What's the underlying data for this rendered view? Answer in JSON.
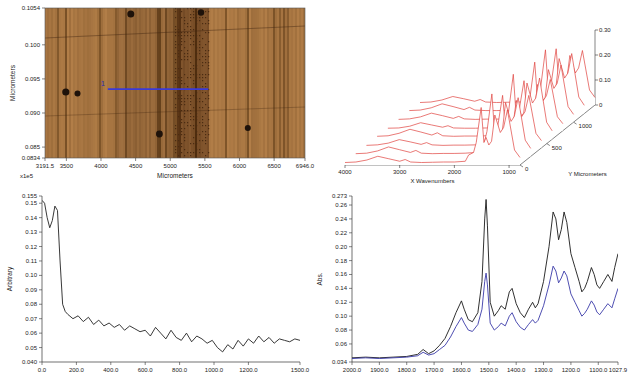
{
  "chart_data": [
    {
      "type": "image",
      "xlabel": "Micrometers",
      "ylabel": "Micrometers",
      "xlim": [
        3191.5,
        6946
      ],
      "ylim": [
        0.0834,
        0.1054
      ],
      "xticks": [
        3191.5,
        3500,
        4000,
        4500,
        5000,
        5500,
        6000,
        6500,
        {
          "value": 6946,
          "label": "6946.0"
        }
      ],
      "yticks": [
        0.0834,
        0.085,
        {
          "value": 0.09,
          "label": "0.090"
        },
        0.095,
        {
          "value": 0.1,
          "label": "0.100"
        },
        0.1054
      ],
      "series": [
        {
          "color": "#3a3ad8",
          "x": [
            4100,
            5550
          ],
          "values": [
            0.0935,
            0.0935
          ]
        }
      ],
      "annotations": [
        "1",
        "x1e5"
      ]
    },
    {
      "type": "waterfall",
      "xlabel": "X Wavenumbers",
      "ylabel": "Y Micrometers",
      "xlim": [
        4000,
        800
      ],
      "xticks": [
        4000,
        3000,
        2000,
        1000
      ],
      "ylim": [
        0,
        1400
      ],
      "yticks": [
        0,
        500,
        1000
      ],
      "zlim": [
        0,
        0.3
      ],
      "zticks": [
        0,
        {
          "value": 0.1,
          "label": "0.10"
        },
        {
          "value": 0.2,
          "label": "0.20"
        },
        {
          "value": 0.3,
          "label": "0.30"
        }
      ],
      "color": "#e0403c",
      "x": [
        4000,
        3800,
        3600,
        3400,
        3200,
        3000,
        2900,
        2800,
        2600,
        2400,
        2200,
        2000,
        1800,
        1740,
        1650,
        1600,
        1510,
        1460,
        1420,
        1370,
        1320,
        1260,
        1160,
        1100,
        1030,
        900,
        800
      ],
      "series": [
        {
          "position": 0,
          "values": [
            0.01,
            0.012,
            0.02,
            0.035,
            0.025,
            0.015,
            0.022,
            0.012,
            0.01,
            0.011,
            0.012,
            0.012,
            0.015,
            0.04,
            0.05,
            0.09,
            0.23,
            0.09,
            0.11,
            0.08,
            0.095,
            0.2,
            0.13,
            0.15,
            0.22,
            0.06,
            0.03
          ]
        },
        {
          "position": 200,
          "values": [
            0.011,
            0.013,
            0.022,
            0.038,
            0.027,
            0.016,
            0.024,
            0.013,
            0.011,
            0.012,
            0.012,
            0.013,
            0.016,
            0.045,
            0.055,
            0.1,
            0.25,
            0.095,
            0.12,
            0.085,
            0.1,
            0.215,
            0.14,
            0.16,
            0.235,
            0.065,
            0.032
          ]
        },
        {
          "position": 400,
          "values": [
            0.01,
            0.012,
            0.019,
            0.033,
            0.024,
            0.014,
            0.021,
            0.012,
            0.01,
            0.011,
            0.011,
            0.012,
            0.014,
            0.038,
            0.048,
            0.085,
            0.21,
            0.085,
            0.105,
            0.078,
            0.09,
            0.19,
            0.125,
            0.145,
            0.21,
            0.058,
            0.029
          ]
        },
        {
          "position": 600,
          "values": [
            0.012,
            0.014,
            0.024,
            0.04,
            0.029,
            0.017,
            0.026,
            0.014,
            0.012,
            0.013,
            0.013,
            0.014,
            0.017,
            0.048,
            0.058,
            0.105,
            0.26,
            0.1,
            0.125,
            0.09,
            0.105,
            0.225,
            0.145,
            0.165,
            0.245,
            0.068,
            0.034
          ]
        },
        {
          "position": 800,
          "values": [
            0.01,
            0.011,
            0.018,
            0.032,
            0.023,
            0.014,
            0.02,
            0.011,
            0.01,
            0.01,
            0.011,
            0.011,
            0.014,
            0.036,
            0.046,
            0.082,
            0.2,
            0.082,
            0.1,
            0.075,
            0.088,
            0.185,
            0.12,
            0.14,
            0.205,
            0.056,
            0.028
          ]
        },
        {
          "position": 1000,
          "values": [
            0.011,
            0.013,
            0.021,
            0.036,
            0.026,
            0.015,
            0.023,
            0.013,
            0.011,
            0.012,
            0.012,
            0.013,
            0.015,
            0.042,
            0.052,
            0.095,
            0.24,
            0.092,
            0.115,
            0.083,
            0.098,
            0.21,
            0.135,
            0.155,
            0.228,
            0.062,
            0.031
          ]
        },
        {
          "position": 1200,
          "values": [
            0.012,
            0.014,
            0.023,
            0.039,
            0.028,
            0.016,
            0.025,
            0.014,
            0.012,
            0.012,
            0.013,
            0.013,
            0.016,
            0.046,
            0.056,
            0.102,
            0.255,
            0.098,
            0.122,
            0.088,
            0.102,
            0.22,
            0.142,
            0.162,
            0.24,
            0.066,
            0.033
          ]
        },
        {
          "position": 1400,
          "values": [
            0.01,
            0.012,
            0.02,
            0.034,
            0.025,
            0.015,
            0.022,
            0.012,
            0.01,
            0.011,
            0.012,
            0.012,
            0.015,
            0.04,
            0.05,
            0.088,
            0.225,
            0.088,
            0.108,
            0.08,
            0.094,
            0.198,
            0.128,
            0.148,
            0.218,
            0.06,
            0.03
          ]
        }
      ]
    },
    {
      "type": "line",
      "ylabel": "Arbitrary",
      "grid": false,
      "color": "#222222",
      "xlim": [
        0,
        1500
      ],
      "ylim": [
        0.04,
        0.155
      ],
      "xticks": [
        {
          "value": 0,
          "label": "0.0"
        },
        {
          "value": 200,
          "label": "200.0"
        },
        {
          "value": 400,
          "label": "400.0"
        },
        {
          "value": 600,
          "label": "600.0"
        },
        {
          "value": 800,
          "label": "800.0"
        },
        {
          "value": 1000,
          "label": "1000.0"
        },
        {
          "value": 1200,
          "label": "1200.0"
        },
        {
          "value": 1500,
          "label": "1500.0"
        }
      ],
      "yticks": [
        {
          "value": 0.04,
          "label": "0.040"
        },
        0.05,
        0.06,
        0.07,
        0.08,
        0.09,
        {
          "value": 0.1,
          "label": "0.10"
        },
        0.11,
        0.12,
        0.13,
        0.14,
        0.15,
        0.155
      ],
      "x": [
        0,
        15,
        30,
        45,
        60,
        75,
        90,
        105,
        120,
        135,
        150,
        180,
        210,
        240,
        270,
        300,
        330,
        360,
        390,
        420,
        450,
        480,
        510,
        540,
        570,
        600,
        630,
        660,
        690,
        720,
        750,
        780,
        810,
        840,
        870,
        900,
        930,
        960,
        990,
        1020,
        1050,
        1080,
        1110,
        1140,
        1170,
        1200,
        1230,
        1260,
        1290,
        1320,
        1350,
        1380,
        1410,
        1440,
        1470,
        1500
      ],
      "values": [
        0.152,
        0.15,
        0.14,
        0.133,
        0.138,
        0.148,
        0.145,
        0.11,
        0.08,
        0.075,
        0.073,
        0.07,
        0.072,
        0.068,
        0.071,
        0.066,
        0.069,
        0.065,
        0.067,
        0.064,
        0.066,
        0.062,
        0.065,
        0.063,
        0.061,
        0.062,
        0.058,
        0.064,
        0.06,
        0.056,
        0.062,
        0.057,
        0.055,
        0.06,
        0.054,
        0.058,
        0.056,
        0.053,
        0.055,
        0.05,
        0.047,
        0.052,
        0.049,
        0.055,
        0.051,
        0.056,
        0.053,
        0.058,
        0.054,
        0.057,
        0.053,
        0.056,
        0.055,
        0.054,
        0.056,
        0.055
      ]
    },
    {
      "type": "line",
      "ylabel": "Abs.",
      "grid": false,
      "xlim": [
        2000,
        1027.9
      ],
      "ylim": [
        0.034,
        0.273
      ],
      "xticks": [
        {
          "value": 2000,
          "label": "2000.0"
        },
        {
          "value": 1900,
          "label": "1900.0"
        },
        {
          "value": 1800,
          "label": "1800.0"
        },
        {
          "value": 1700,
          "label": "1700.0"
        },
        {
          "value": 1600,
          "label": "1600.0"
        },
        {
          "value": 1500,
          "label": "1500.0"
        },
        {
          "value": 1400,
          "label": "1400.0"
        },
        {
          "value": 1300,
          "label": "1300.0"
        },
        {
          "value": 1200,
          "label": "1200.0"
        },
        {
          "value": 1100,
          "label": "1100.0"
        },
        1027.9
      ],
      "yticks": [
        0.034,
        0.06,
        0.08,
        {
          "value": 0.1,
          "label": "0.10"
        },
        0.12,
        0.14,
        0.16,
        0.18,
        {
          "value": 0.2,
          "label": "0.20"
        },
        0.22,
        0.24,
        0.26,
        0.273
      ],
      "x": [
        2000,
        1950,
        1900,
        1850,
        1800,
        1760,
        1740,
        1720,
        1700,
        1680,
        1660,
        1640,
        1620,
        1600,
        1590,
        1575,
        1560,
        1540,
        1525,
        1515,
        1510,
        1505,
        1495,
        1480,
        1465,
        1455,
        1440,
        1425,
        1415,
        1400,
        1385,
        1370,
        1355,
        1340,
        1330,
        1320,
        1300,
        1280,
        1265,
        1255,
        1245,
        1235,
        1225,
        1215,
        1200,
        1185,
        1170,
        1160,
        1150,
        1140,
        1125,
        1115,
        1105,
        1095,
        1080,
        1065,
        1050,
        1040,
        1027.9
      ],
      "series": [
        {
          "color": "#1a1a1a",
          "values": [
            0.04,
            0.041,
            0.04,
            0.041,
            0.042,
            0.045,
            0.052,
            0.046,
            0.05,
            0.058,
            0.068,
            0.085,
            0.105,
            0.122,
            0.11,
            0.095,
            0.092,
            0.105,
            0.15,
            0.24,
            0.268,
            0.23,
            0.12,
            0.1,
            0.108,
            0.115,
            0.11,
            0.135,
            0.14,
            0.118,
            0.105,
            0.098,
            0.11,
            0.12,
            0.112,
            0.118,
            0.15,
            0.2,
            0.25,
            0.24,
            0.21,
            0.225,
            0.25,
            0.235,
            0.19,
            0.17,
            0.15,
            0.135,
            0.14,
            0.15,
            0.17,
            0.16,
            0.145,
            0.14,
            0.15,
            0.16,
            0.15,
            0.17,
            0.19
          ]
        },
        {
          "color": "#3a3aa8",
          "values": [
            0.039,
            0.04,
            0.039,
            0.04,
            0.041,
            0.043,
            0.048,
            0.044,
            0.046,
            0.052,
            0.058,
            0.07,
            0.085,
            0.098,
            0.09,
            0.08,
            0.078,
            0.088,
            0.11,
            0.15,
            0.162,
            0.145,
            0.09,
            0.08,
            0.085,
            0.09,
            0.086,
            0.1,
            0.105,
            0.092,
            0.084,
            0.08,
            0.088,
            0.095,
            0.09,
            0.094,
            0.115,
            0.145,
            0.172,
            0.165,
            0.148,
            0.155,
            0.165,
            0.158,
            0.132,
            0.12,
            0.108,
            0.1,
            0.104,
            0.11,
            0.122,
            0.116,
            0.106,
            0.102,
            0.11,
            0.118,
            0.112,
            0.125,
            0.14
          ]
        }
      ]
    }
  ]
}
